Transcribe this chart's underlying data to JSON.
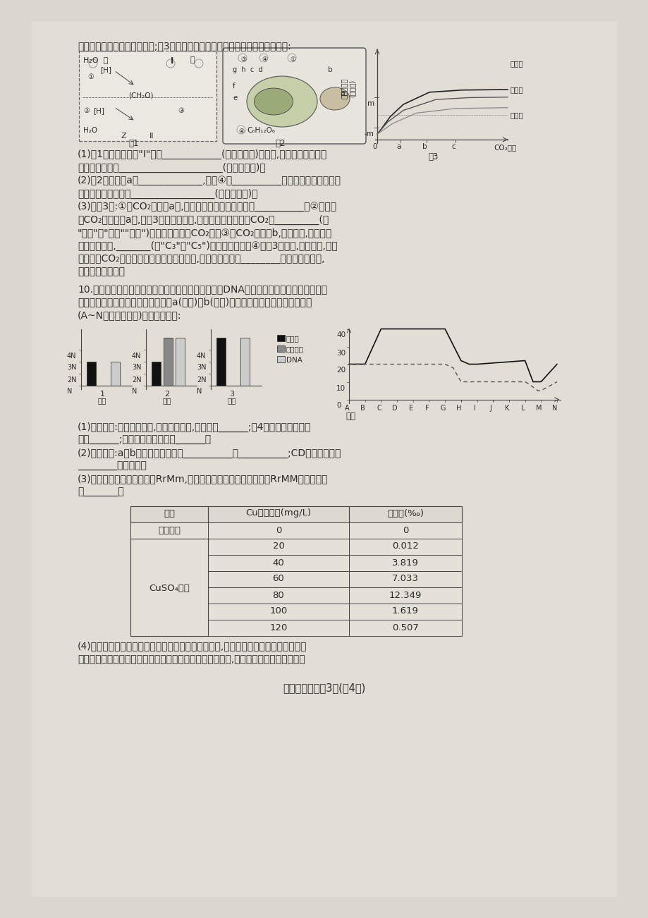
{
  "page_bg": "#dbd7cf",
  "content_bg": "#e2ded6",
  "text_color": "#2a2a2a",
  "line_color": "#444444",
  "title_line": "叶肉细胞部分代谢过程示意图;图3表示番茄净光合速率的变化趋势。请据图回答:",
  "q1_lines": [
    "(1)图1甲过程中物质\"I\"是在____________(答具体结构)上产生,该物质在乙过程发",
    "生反应的场所是_____________________(答具体结构)。",
    "(2)图2中细胞器a是_____________,物质④是__________。光照充足条件下理论",
    "上可以完成的过程有_________________(用字母表示)。",
    "(3)在图3中:①当CO₂浓度为a时,高光强下番茄的光合速率为__________。②当环境",
    "中CO₂浓度小于a时,在图3的三种光强下,番茄呼吸作用产生的CO₂量_________(填",
    "\"大于\"、\"等于\"\"小于\")光合作用吸收的CO₂量。③当CO₂浓度为b,中光强时,如果适当",
    "增加光照强度,_______(填\"C₃\"或\"C₅\")的含量将上升。④据图3可推测,在温室中,若要",
    "采取提高CO₂浓度的措施来提高番茄的产量,还应该同时考虑________这一因素的影响,",
    "并采取相应措施。"
  ],
  "q10_intro": [
    "10.下图甲是二倍体生物细胞有丝分裂过程中染色体、DNA和染色单体数量变化示意图。图",
    "乙是哺乳动物有性生殖过程中细胞内a(实线)、b(虚线)两种物质的相对数量的变化曲线",
    "(A~N表示不同时期)。请据图回答:"
  ],
  "q10_answers": [
    "(1)在甲图中:核仁逐渐解体,核膜逐渐消失,对应于图______;含4个染色体组的时期",
    "是图______;含同源染色体的是图______。",
    "(2)在乙图中:a、b表示的物质分别是__________、__________;CD时期细胞内有",
    "________个四分体。",
    "(3)若该哺乳动物的基因型是RrMm,测交后所得子代中出现基因型为RrMM的个体是因",
    "为_______。"
  ],
  "table_header": [
    "组别",
    "Cu质量浓度(mg/L)",
    "微核率(‰)"
  ],
  "table_rows": [
    [
      "空白对照",
      "0",
      "0"
    ],
    [
      "",
      "20",
      "0.012"
    ],
    [
      "",
      "40",
      "3.819"
    ],
    [
      "CuSO₄溶液",
      "60",
      "7.033"
    ],
    [
      "",
      "80",
      "12.349"
    ],
    [
      "",
      "100",
      "1.619"
    ],
    [
      "",
      "120",
      "0.507"
    ]
  ],
  "q4_lines": [
    "(4)微核是细胞在有丝分裂过程中因各种有害因素损伤,使细胞核成分残留在核外而形成",
    "的微小染色质块。当外界环境中存在一定浓度的致突变物时,会使具有微核的细胞增多。"
  ],
  "footer": "高三理综一诊第3页(共4页)"
}
